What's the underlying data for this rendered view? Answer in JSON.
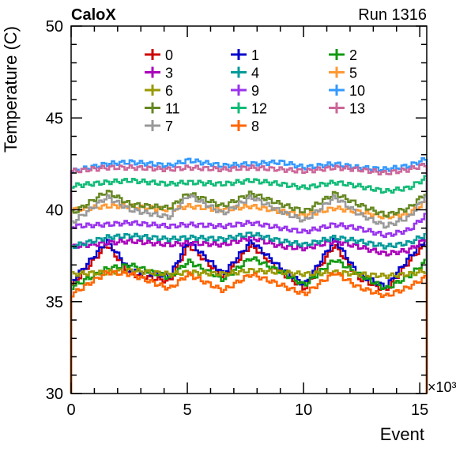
{
  "header": {
    "left_label": "CaloX",
    "right_label": "Run 1316"
  },
  "chart_data": {
    "type": "line",
    "xlabel": "Event",
    "ylabel": "Temperature (C)",
    "x_multiplier_label": "×10³",
    "xlim": [
      0,
      15.3
    ],
    "ylim": [
      30,
      50
    ],
    "x_ticks": [
      0,
      5,
      10,
      15
    ],
    "x_tick_labels": [
      "0",
      "5",
      "10",
      "15"
    ],
    "y_ticks": [
      30,
      35,
      40,
      45,
      50
    ],
    "y_tick_labels": [
      "30",
      "35",
      "40",
      "45",
      "50"
    ],
    "x": [
      0,
      1.5,
      2.5,
      4.2,
      5.0,
      6.5,
      7.7,
      9.0,
      10.0,
      11.3,
      12.3,
      13.5,
      14.5,
      15.3
    ],
    "series": [
      {
        "name": "0",
        "color": "#cc0000",
        "values": [
          35.9,
          38.1,
          36.5,
          36.1,
          38.1,
          36.3,
          38.1,
          36.6,
          35.7,
          38.1,
          36.3,
          35.6,
          37.2,
          38.3
        ]
      },
      {
        "name": "1",
        "color": "#0000cc",
        "values": [
          36.1,
          38.3,
          36.7,
          36.4,
          38.3,
          36.5,
          38.3,
          36.8,
          35.9,
          38.4,
          36.5,
          35.8,
          37.4,
          38.5
        ]
      },
      {
        "name": "2",
        "color": "#119911",
        "values": [
          35.8,
          36.8,
          37.0,
          36.3,
          37.2,
          36.2,
          37.4,
          36.6,
          35.9,
          37.3,
          36.5,
          35.7,
          36.4,
          37.3
        ]
      },
      {
        "name": "3",
        "color": "#aa00bb",
        "values": [
          38.0,
          38.2,
          38.3,
          38.1,
          38.2,
          38.1,
          38.5,
          38.0,
          37.9,
          38.3,
          38.0,
          37.6,
          37.8,
          38.5
        ]
      },
      {
        "name": "4",
        "color": "#009999",
        "values": [
          38.0,
          38.5,
          38.6,
          38.4,
          38.5,
          38.4,
          38.7,
          38.3,
          38.1,
          38.5,
          38.3,
          38.0,
          38.2,
          38.7
        ]
      },
      {
        "name": "5",
        "color": "#ff9933",
        "values": [
          40.0,
          40.2,
          40.2,
          40.0,
          40.2,
          40.0,
          40.2,
          39.9,
          39.7,
          40.1,
          39.9,
          39.6,
          39.8,
          40.5
        ]
      },
      {
        "name": "6",
        "color": "#999900",
        "values": [
          36.5,
          36.6,
          36.7,
          36.5,
          36.6,
          36.5,
          36.7,
          36.6,
          36.5,
          36.6,
          36.5,
          36.4,
          36.5,
          36.7
        ]
      },
      {
        "name": "9",
        "color": "#9933ee",
        "values": [
          39.1,
          39.2,
          39.3,
          39.1,
          39.2,
          39.1,
          39.3,
          39.0,
          38.8,
          39.2,
          39.0,
          38.6,
          38.9,
          39.8
        ]
      },
      {
        "name": "10",
        "color": "#3399ff",
        "values": [
          42.1,
          42.5,
          42.6,
          42.4,
          42.7,
          42.4,
          42.5,
          42.6,
          42.3,
          42.5,
          42.3,
          42.2,
          42.4,
          42.8
        ]
      },
      {
        "name": "11",
        "color": "#668822",
        "values": [
          39.8,
          41.0,
          40.3,
          40.1,
          40.9,
          40.2,
          40.9,
          40.3,
          39.9,
          40.9,
          40.3,
          39.7,
          40.1,
          41.0
        ]
      },
      {
        "name": "12",
        "color": "#11bb77",
        "values": [
          41.3,
          41.5,
          41.6,
          41.4,
          41.5,
          41.4,
          41.6,
          41.4,
          41.2,
          41.5,
          41.3,
          41.0,
          41.2,
          41.8
        ]
      },
      {
        "name": "13",
        "color": "#cc6699",
        "values": [
          42.1,
          42.3,
          42.3,
          42.2,
          42.3,
          42.2,
          42.3,
          42.2,
          42.1,
          42.3,
          42.2,
          42.0,
          42.2,
          42.5
        ]
      },
      {
        "name": "7",
        "color": "#999999",
        "values": [
          39.3,
          40.7,
          40.0,
          39.6,
          40.8,
          39.8,
          40.7,
          39.9,
          39.4,
          40.7,
          39.8,
          39.1,
          39.6,
          40.9
        ]
      },
      {
        "name": "8",
        "color": "#ff6600",
        "values": [
          35.4,
          36.6,
          36.5,
          35.7,
          36.5,
          35.6,
          36.5,
          35.9,
          35.4,
          36.6,
          35.8,
          35.3,
          35.8,
          36.4
        ]
      }
    ],
    "legend": {
      "placement": "top-center",
      "columns": 3,
      "order": [
        "0",
        "1",
        "2",
        "3",
        "4",
        "5",
        "6",
        "9",
        "10",
        "11",
        "12",
        "13",
        "7",
        "8"
      ]
    },
    "grid": false
  }
}
